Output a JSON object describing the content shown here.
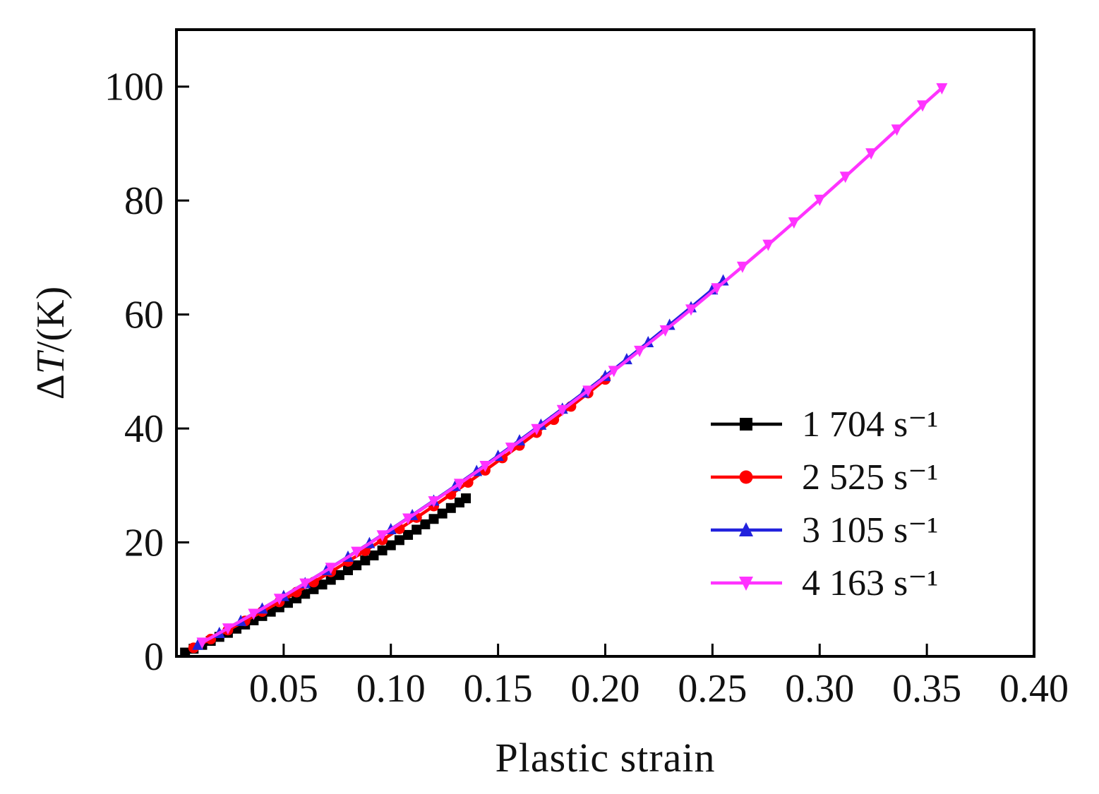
{
  "figure": {
    "background": "#ffffff",
    "frame_color": "#000000",
    "text_color": "#111111"
  },
  "chart_data": {
    "type": "line",
    "title": "",
    "xlabel": "Plastic strain",
    "ylabel": "ΔT/(K)",
    "xlim": [
      0,
      0.4
    ],
    "ylim": [
      0,
      110
    ],
    "grid": false,
    "legend_position": "right-middle",
    "xticks": [
      {
        "value": 0.05,
        "label": "0.05"
      },
      {
        "value": 0.1,
        "label": "0.10"
      },
      {
        "value": 0.15,
        "label": "0.15"
      },
      {
        "value": 0.2,
        "label": "0.20"
      },
      {
        "value": 0.25,
        "label": "0.25"
      },
      {
        "value": 0.3,
        "label": "0.30"
      },
      {
        "value": 0.35,
        "label": "0.35"
      },
      {
        "value": 0.4,
        "label": "0.40"
      }
    ],
    "yticks": [
      {
        "value": 0,
        "label": "0"
      },
      {
        "value": 20,
        "label": "20"
      },
      {
        "value": 40,
        "label": "40"
      },
      {
        "value": 60,
        "label": "60"
      },
      {
        "value": 80,
        "label": "80"
      },
      {
        "value": 100,
        "label": "100"
      }
    ],
    "series": [
      {
        "name": "1 704 s⁻¹",
        "color": "#000000",
        "marker": "square",
        "points": [
          [
            0.004,
            0.67
          ],
          [
            0.008,
            1.34
          ],
          [
            0.012,
            2.02
          ],
          [
            0.016,
            2.72
          ],
          [
            0.02,
            3.42
          ],
          [
            0.024,
            4.13
          ],
          [
            0.028,
            4.86
          ],
          [
            0.032,
            5.59
          ],
          [
            0.036,
            6.33
          ],
          [
            0.04,
            7.08
          ],
          [
            0.044,
            7.84
          ],
          [
            0.048,
            8.61
          ],
          [
            0.052,
            9.39
          ],
          [
            0.056,
            10.18
          ],
          [
            0.06,
            10.98
          ],
          [
            0.064,
            11.79
          ],
          [
            0.068,
            12.61
          ],
          [
            0.072,
            13.44
          ],
          [
            0.076,
            14.27
          ],
          [
            0.08,
            15.12
          ],
          [
            0.084,
            15.98
          ],
          [
            0.088,
            16.84
          ],
          [
            0.092,
            17.72
          ],
          [
            0.096,
            18.6
          ],
          [
            0.1,
            19.5
          ],
          [
            0.104,
            20.4
          ],
          [
            0.108,
            21.32
          ],
          [
            0.112,
            22.24
          ],
          [
            0.116,
            23.18
          ],
          [
            0.12,
            24.12
          ],
          [
            0.124,
            25.07
          ],
          [
            0.128,
            26.04
          ],
          [
            0.132,
            27.01
          ],
          [
            0.135,
            27.74
          ]
        ]
      },
      {
        "name": "2 525 s⁻¹",
        "color": "#ff0000",
        "marker": "circle",
        "points": [
          [
            0.008,
            1.5
          ],
          [
            0.016,
            3.03
          ],
          [
            0.024,
            4.61
          ],
          [
            0.032,
            6.22
          ],
          [
            0.04,
            7.86
          ],
          [
            0.048,
            9.55
          ],
          [
            0.056,
            11.27
          ],
          [
            0.064,
            13.03
          ],
          [
            0.072,
            14.82
          ],
          [
            0.08,
            16.66
          ],
          [
            0.088,
            18.53
          ],
          [
            0.096,
            20.43
          ],
          [
            0.104,
            22.38
          ],
          [
            0.112,
            24.36
          ],
          [
            0.12,
            26.38
          ],
          [
            0.128,
            28.43
          ],
          [
            0.136,
            30.52
          ],
          [
            0.144,
            32.65
          ],
          [
            0.152,
            34.82
          ],
          [
            0.16,
            37.02
          ],
          [
            0.168,
            39.27
          ],
          [
            0.176,
            41.54
          ],
          [
            0.184,
            43.86
          ],
          [
            0.192,
            46.21
          ],
          [
            0.2,
            48.6
          ]
        ]
      },
      {
        "name": "3 105 s⁻¹",
        "color": "#2222dd",
        "marker": "triangle-up",
        "points": [
          [
            0.01,
            2.02
          ],
          [
            0.02,
            4.09
          ],
          [
            0.03,
            6.21
          ],
          [
            0.04,
            8.37
          ],
          [
            0.05,
            10.58
          ],
          [
            0.06,
            12.83
          ],
          [
            0.07,
            15.13
          ],
          [
            0.08,
            17.47
          ],
          [
            0.09,
            19.86
          ],
          [
            0.1,
            22.3
          ],
          [
            0.11,
            24.78
          ],
          [
            0.12,
            27.31
          ],
          [
            0.13,
            29.89
          ],
          [
            0.14,
            32.51
          ],
          [
            0.15,
            35.18
          ],
          [
            0.16,
            37.89
          ],
          [
            0.17,
            40.65
          ],
          [
            0.18,
            43.45
          ],
          [
            0.19,
            46.3
          ],
          [
            0.2,
            49.2
          ],
          [
            0.21,
            52.14
          ],
          [
            0.22,
            55.13
          ],
          [
            0.23,
            58.17
          ],
          [
            0.24,
            61.25
          ],
          [
            0.25,
            64.38
          ],
          [
            0.255,
            65.96
          ]
        ]
      },
      {
        "name": "4 163 s⁻¹",
        "color": "#ff33ff",
        "marker": "triangle-down",
        "points": [
          [
            0.012,
            2.43
          ],
          [
            0.024,
            4.93
          ],
          [
            0.036,
            7.49
          ],
          [
            0.048,
            10.12
          ],
          [
            0.06,
            12.81
          ],
          [
            0.072,
            15.56
          ],
          [
            0.084,
            18.38
          ],
          [
            0.096,
            21.26
          ],
          [
            0.108,
            24.21
          ],
          [
            0.12,
            27.23
          ],
          [
            0.132,
            30.3
          ],
          [
            0.144,
            33.44
          ],
          [
            0.156,
            36.65
          ],
          [
            0.168,
            39.92
          ],
          [
            0.18,
            43.26
          ],
          [
            0.192,
            46.66
          ],
          [
            0.204,
            50.12
          ],
          [
            0.216,
            53.65
          ],
          [
            0.228,
            57.24
          ],
          [
            0.24,
            60.9
          ],
          [
            0.252,
            64.63
          ],
          [
            0.264,
            68.41
          ],
          [
            0.276,
            72.26
          ],
          [
            0.288,
            76.18
          ],
          [
            0.3,
            80.16
          ],
          [
            0.312,
            84.2
          ],
          [
            0.324,
            88.31
          ],
          [
            0.336,
            92.48
          ],
          [
            0.348,
            96.72
          ],
          [
            0.357,
            99.74
          ]
        ]
      }
    ]
  }
}
